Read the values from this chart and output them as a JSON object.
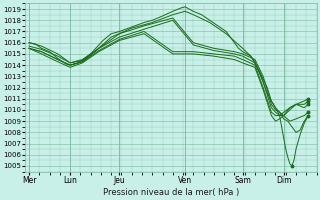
{
  "bg_color": "#c8f0e8",
  "grid_color": "#7ab8a0",
  "line_color": "#1a6b1a",
  "xlabel": "Pression niveau de la mer( hPa )",
  "ylim": [
    1004.5,
    1019.5
  ],
  "yticks": [
    1005,
    1006,
    1007,
    1008,
    1009,
    1010,
    1011,
    1012,
    1013,
    1014,
    1015,
    1016,
    1017,
    1018,
    1019
  ],
  "xtick_labels": [
    "Mer",
    "Lun",
    "Jeu",
    "Ven",
    "Sam",
    "Dim"
  ],
  "xtick_pos": [
    0.0,
    1.0,
    2.2,
    3.8,
    5.2,
    6.2
  ],
  "xlim": [
    -0.1,
    7.0
  ],
  "lines": [
    [
      0.0,
      1016.0,
      0.15,
      1015.9,
      0.3,
      1015.5,
      0.5,
      1015.2,
      0.7,
      1014.6,
      0.9,
      1014.1,
      1.0,
      1014.0,
      1.2,
      1014.2,
      1.5,
      1015.0,
      1.8,
      1016.2,
      2.0,
      1016.8,
      2.2,
      1017.0,
      2.5,
      1017.4,
      2.8,
      1017.8,
      3.0,
      1018.0,
      3.2,
      1018.3,
      3.5,
      1018.8,
      3.7,
      1019.1,
      3.8,
      1019.2,
      3.9,
      1019.0,
      4.0,
      1018.8,
      4.2,
      1018.5,
      4.4,
      1018.0,
      4.6,
      1017.5,
      4.8,
      1017.0,
      5.0,
      1016.0,
      5.1,
      1015.5,
      5.2,
      1015.2,
      5.3,
      1015.0,
      5.4,
      1014.8,
      5.5,
      1014.3,
      5.6,
      1013.5,
      5.7,
      1012.5,
      5.8,
      1011.5,
      5.9,
      1010.8,
      6.0,
      1010.2,
      6.1,
      1009.5,
      6.15,
      1008.5,
      6.2,
      1007.5,
      6.25,
      1006.5,
      6.3,
      1005.8,
      6.35,
      1005.2,
      6.4,
      1005.0,
      6.45,
      1005.5,
      6.5,
      1006.5,
      6.6,
      1007.8,
      6.7,
      1008.8,
      6.8,
      1009.5
    ],
    [
      0.0,
      1016.0,
      0.3,
      1015.7,
      0.7,
      1015.0,
      1.0,
      1014.2,
      1.3,
      1014.4,
      1.6,
      1015.2,
      2.0,
      1016.5,
      2.5,
      1017.3,
      3.0,
      1017.8,
      3.5,
      1018.5,
      3.8,
      1018.8,
      4.0,
      1018.5,
      4.4,
      1017.8,
      4.8,
      1016.8,
      5.2,
      1015.5,
      5.4,
      1014.8,
      5.6,
      1013.5,
      5.8,
      1012.0,
      5.9,
      1010.8,
      6.0,
      1010.2,
      6.1,
      1009.8,
      6.2,
      1009.2,
      6.3,
      1009.0,
      6.4,
      1008.5,
      6.5,
      1008.0,
      6.6,
      1008.2,
      6.7,
      1009.0,
      6.8,
      1009.5
    ],
    [
      0.0,
      1015.7,
      0.3,
      1015.4,
      0.7,
      1014.8,
      1.0,
      1014.2,
      1.3,
      1014.5,
      1.7,
      1015.5,
      2.2,
      1016.8,
      2.8,
      1017.5,
      3.5,
      1018.2,
      4.0,
      1016.0,
      4.5,
      1015.5,
      5.0,
      1015.2,
      5.2,
      1015.0,
      5.5,
      1014.5,
      5.7,
      1013.0,
      5.8,
      1011.8,
      5.9,
      1010.5,
      6.0,
      1010.0,
      6.1,
      1009.8,
      6.2,
      1009.5,
      6.35,
      1009.0,
      6.5,
      1009.2,
      6.7,
      1009.5,
      6.8,
      1009.8
    ],
    [
      0.0,
      1015.5,
      0.3,
      1015.2,
      0.7,
      1014.5,
      1.0,
      1014.0,
      1.3,
      1014.3,
      1.7,
      1015.5,
      2.2,
      1016.5,
      2.8,
      1017.2,
      3.5,
      1018.0,
      4.0,
      1015.8,
      4.5,
      1015.3,
      5.0,
      1015.0,
      5.2,
      1014.8,
      5.5,
      1014.2,
      5.7,
      1012.5,
      5.9,
      1010.2,
      6.0,
      1009.8,
      6.1,
      1009.5,
      6.2,
      1009.5,
      6.35,
      1010.2,
      6.5,
      1010.5,
      6.7,
      1010.2,
      6.8,
      1010.5
    ],
    [
      0.0,
      1015.5,
      0.3,
      1015.2,
      0.7,
      1014.5,
      1.0,
      1014.0,
      1.3,
      1014.3,
      1.7,
      1015.3,
      2.2,
      1016.3,
      2.8,
      1017.0,
      3.5,
      1015.2,
      4.0,
      1015.2,
      4.5,
      1015.0,
      5.0,
      1014.8,
      5.2,
      1014.5,
      5.5,
      1014.0,
      5.7,
      1012.0,
      5.9,
      1009.8,
      6.0,
      1009.5,
      6.1,
      1009.5,
      6.2,
      1009.8,
      6.35,
      1010.2,
      6.5,
      1010.5,
      6.7,
      1010.5,
      6.8,
      1010.8
    ],
    [
      0.0,
      1015.5,
      0.3,
      1015.0,
      0.7,
      1014.3,
      1.0,
      1013.8,
      1.3,
      1014.2,
      1.7,
      1015.2,
      2.2,
      1016.2,
      2.8,
      1016.8,
      3.5,
      1015.0,
      4.0,
      1015.0,
      4.5,
      1014.8,
      5.0,
      1014.5,
      5.2,
      1014.2,
      5.5,
      1013.8,
      5.7,
      1011.8,
      5.9,
      1009.5,
      6.0,
      1009.0,
      6.1,
      1009.2,
      6.2,
      1009.5,
      6.35,
      1010.0,
      6.5,
      1010.5,
      6.7,
      1010.8,
      6.8,
      1011.0
    ]
  ],
  "marker_positions": [
    [
      6.4,
      1005.0
    ],
    [
      6.8,
      1009.5
    ],
    [
      6.8,
      1009.8
    ],
    [
      6.8,
      1010.5
    ],
    [
      6.8,
      1010.8
    ],
    [
      6.8,
      1011.0
    ]
  ]
}
